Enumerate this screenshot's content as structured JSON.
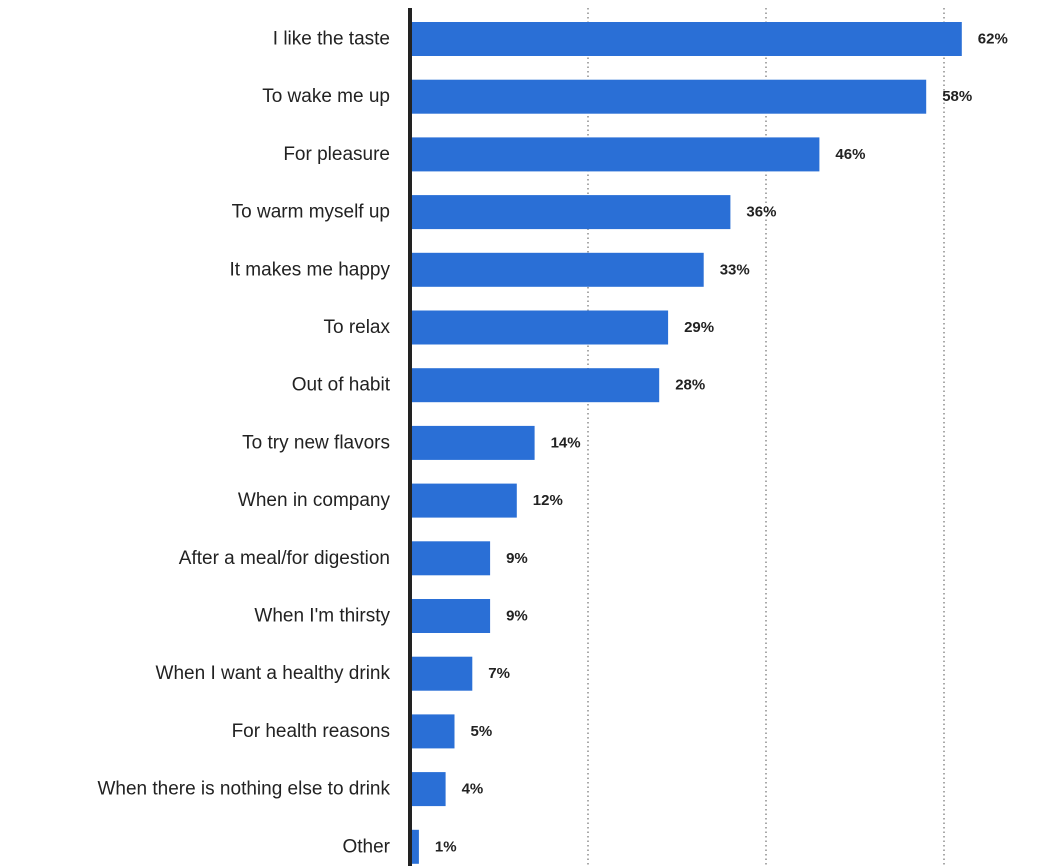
{
  "chart_data": {
    "type": "bar",
    "orientation": "horizontal",
    "categories": [
      "I like the taste",
      "To wake me up",
      "For pleasure",
      "To warm myself up",
      "It makes me happy",
      "To relax",
      "Out of habit",
      "To try new flavors",
      "When in company",
      "After a meal/for digestion",
      "When I'm thirsty",
      "When I want a healthy drink",
      "For health reasons",
      "When there is nothing else to drink",
      "Other"
    ],
    "values": [
      62,
      58,
      46,
      36,
      33,
      29,
      28,
      14,
      12,
      9,
      9,
      7,
      5,
      4,
      1
    ],
    "value_labels": [
      "62%",
      "58%",
      "46%",
      "36%",
      "33%",
      "29%",
      "28%",
      "14%",
      "12%",
      "9%",
      "9%",
      "7%",
      "5%",
      "4%",
      "1%"
    ],
    "title": "",
    "xlabel": "",
    "ylabel": "",
    "xlim": [
      0,
      70
    ],
    "gridlines": [
      20,
      40,
      60
    ],
    "grid": true,
    "legend": "none",
    "bar_color": "#2a6fd6"
  }
}
